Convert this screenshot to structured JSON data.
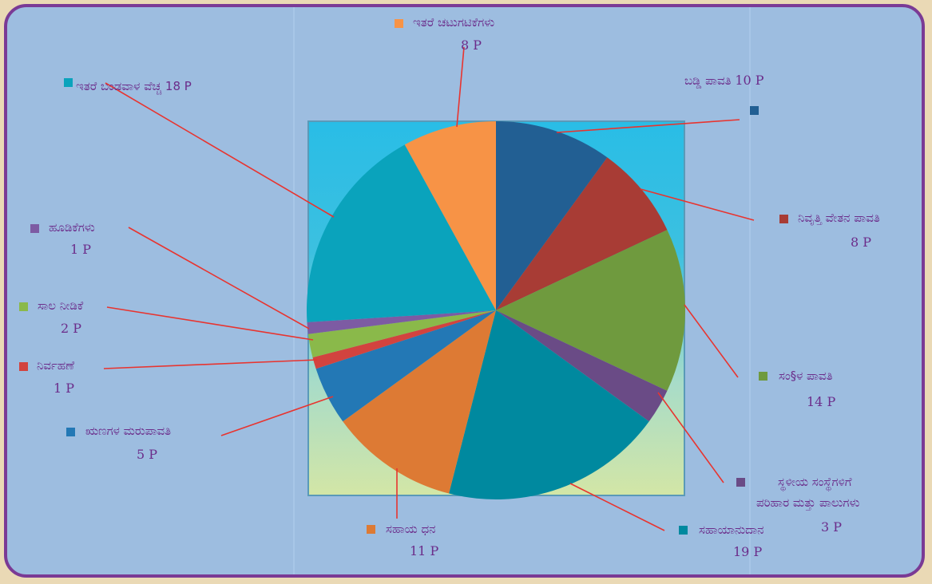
{
  "chart_data": {
    "type": "pie",
    "unit": "P",
    "slices": [
      {
        "label": "ಬಡ್ಡಿ ಪಾವತಿ",
        "value": 10,
        "value_text": "10 P",
        "color": "#225f93"
      },
      {
        "label": "ನಿವೃತ್ತಿ ವೇತನ ಪಾವತಿ",
        "value": 8,
        "value_text": "8 P",
        "color": "#a83c35"
      },
      {
        "label": "ಸಂ§ಳ ಪಾವತಿ",
        "value": 14,
        "value_text": "14 P",
        "color": "#6f9a3e"
      },
      {
        "label_lines": [
          "ಸ್ಥಳೀಯ ಸಂಸ್ಥೆಗಳಿಗೆ",
          "ಪರಿಹಾರ ಮತ್ತು ಪಾಲುಗಳು"
        ],
        "value": 3,
        "value_text": "3 P",
        "color": "#6a4b86"
      },
      {
        "label": "ಸಹಾಯಾನುದಾನ",
        "value": 19,
        "value_text": "19 P",
        "color": "#00899f"
      },
      {
        "label": "ಸಹಾಯ ಧನ",
        "value": 11,
        "value_text": "11 P",
        "color": "#dd7a34"
      },
      {
        "label": "ಋಣಗಳ ಮರುಪಾವತಿ",
        "value": 5,
        "value_text": "5 P",
        "color": "#2378b5"
      },
      {
        "label": "ನಿರ್ವಹಣೆ",
        "value": 1,
        "value_text": "1 P",
        "color": "#d2433f"
      },
      {
        "label": "ಸಾಲ ನೀಡಿಕೆ",
        "value": 2,
        "value_text": "2 P",
        "color": "#8ab94a"
      },
      {
        "label": "ಹೂಡಿಕೆಗಳು",
        "value": 1,
        "value_text": "1 P",
        "color": "#7d5ba3"
      },
      {
        "label": "ಇತರೆ ಬಂಡವಾಳ ವೆಚ್ಚ 18 P",
        "value": 18,
        "color": "#0aa3bc"
      },
      {
        "label": "ಇತರೆ ಚಟುಗಟಿಕೆಗಳು",
        "value": 8,
        "value_text": "8 P",
        "color": "#f79346"
      }
    ]
  }
}
